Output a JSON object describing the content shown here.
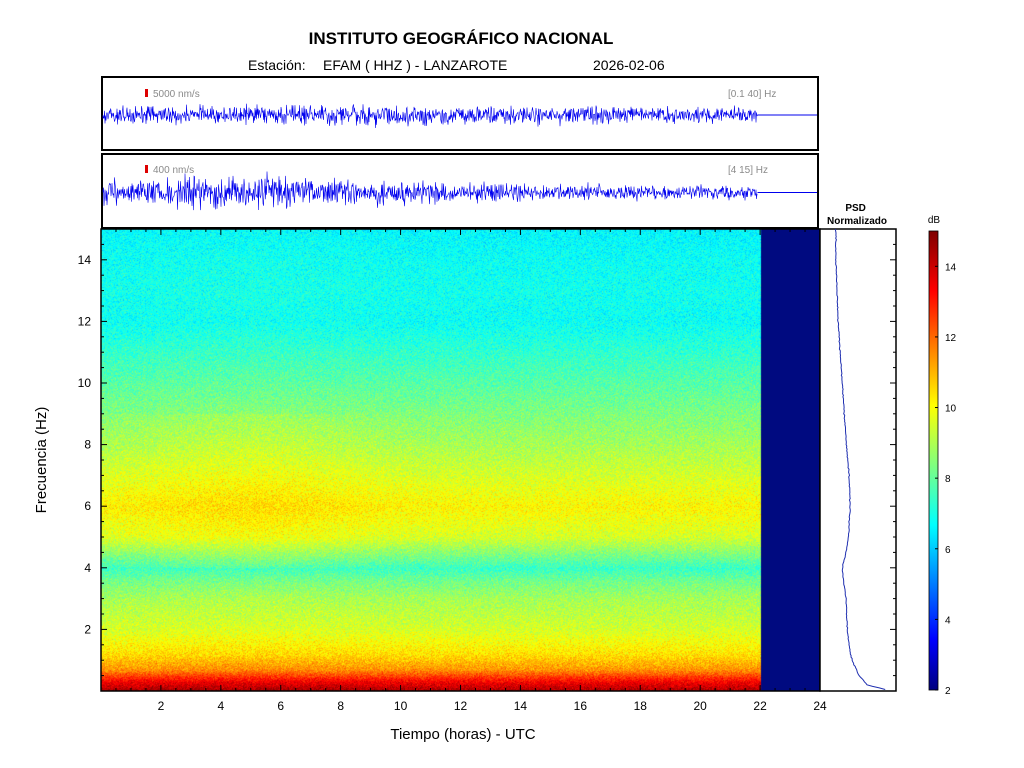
{
  "header": {
    "title": "INSTITUTO GEOGRÁFICO NACIONAL",
    "station_prefix": "Estación:",
    "station": "EFAM ( HHZ ) - LANZAROTE",
    "date": "2026-02-06"
  },
  "colors": {
    "trace": "#0000ee",
    "scale_marker": "#dd0000",
    "no_data": "#000a80",
    "psd_line": "#1f2fb0",
    "annotation": "#8a8a8a"
  },
  "chart_data": [
    {
      "type": "line",
      "name": "seismogram-broadband",
      "scale_label": "5000 nm/s",
      "band_label": "[0.1 40] Hz",
      "x_range": [
        0,
        24
      ],
      "data_until_hour": 22,
      "amplitude_envelope": [
        {
          "x": 0,
          "amp": 0.35
        },
        {
          "x": 6,
          "amp": 0.36
        },
        {
          "x": 9.5,
          "amp": 0.42
        },
        {
          "x": 14,
          "amp": 0.37
        },
        {
          "x": 22,
          "amp": 0.33
        }
      ]
    },
    {
      "type": "line",
      "name": "seismogram-filtered",
      "scale_label": "400 nm/s",
      "band_label": "[4 15] Hz",
      "x_range": [
        0,
        24
      ],
      "data_until_hour": 22,
      "amplitude_envelope": [
        {
          "x": 0,
          "amp": 0.45
        },
        {
          "x": 3,
          "amp": 0.6
        },
        {
          "x": 5.5,
          "amp": 0.65
        },
        {
          "x": 9,
          "amp": 0.45
        },
        {
          "x": 14,
          "amp": 0.35
        },
        {
          "x": 22,
          "amp": 0.25
        }
      ]
    },
    {
      "type": "heatmap",
      "name": "spectrogram",
      "xlabel": "Tiempo (horas) - UTC",
      "ylabel": "Frecuencia  (Hz)",
      "x_range": [
        0,
        24
      ],
      "y_range": [
        0,
        15
      ],
      "x_ticks": [
        2,
        4,
        6,
        8,
        10,
        12,
        14,
        16,
        18,
        20,
        22,
        24
      ],
      "y_ticks": [
        2,
        4,
        6,
        8,
        10,
        12,
        14
      ],
      "data_until_hour": 22,
      "color_range_db": [
        2,
        15
      ],
      "db_profile_by_frequency": [
        {
          "freq": 0.0,
          "db": 14.5
        },
        {
          "freq": 0.3,
          "db": 13.5
        },
        {
          "freq": 0.7,
          "db": 11.5
        },
        {
          "freq": 1.2,
          "db": 10.5
        },
        {
          "freq": 2.0,
          "db": 9.6
        },
        {
          "freq": 3.0,
          "db": 9.0
        },
        {
          "freq": 3.6,
          "db": 8.3
        },
        {
          "freq": 4.0,
          "db": 7.6
        },
        {
          "freq": 4.4,
          "db": 8.4
        },
        {
          "freq": 5.0,
          "db": 9.6
        },
        {
          "freq": 6.0,
          "db": 10.2
        },
        {
          "freq": 7.0,
          "db": 9.6
        },
        {
          "freq": 8.0,
          "db": 9.0
        },
        {
          "freq": 9.0,
          "db": 8.5
        },
        {
          "freq": 10.0,
          "db": 8.0
        },
        {
          "freq": 11.0,
          "db": 7.5
        },
        {
          "freq": 12.0,
          "db": 7.0
        },
        {
          "freq": 13.0,
          "db": 7.1
        },
        {
          "freq": 14.0,
          "db": 7.0
        },
        {
          "freq": 15.0,
          "db": 6.8
        }
      ]
    },
    {
      "type": "line",
      "name": "psd-normalizado",
      "title": "PSD\nNormalizado",
      "y_range": [
        0,
        15
      ],
      "x_range": [
        0,
        1
      ],
      "values": [
        {
          "freq": 0.0,
          "v": 0.95
        },
        {
          "freq": 0.2,
          "v": 0.55
        },
        {
          "freq": 0.5,
          "v": 0.42
        },
        {
          "freq": 1.0,
          "v": 0.3
        },
        {
          "freq": 1.5,
          "v": 0.25
        },
        {
          "freq": 2.0,
          "v": 0.22
        },
        {
          "freq": 3.0,
          "v": 0.2
        },
        {
          "freq": 3.6,
          "v": 0.16
        },
        {
          "freq": 4.0,
          "v": 0.14
        },
        {
          "freq": 4.5,
          "v": 0.2
        },
        {
          "freq": 5.0,
          "v": 0.24
        },
        {
          "freq": 6.0,
          "v": 0.27
        },
        {
          "freq": 7.0,
          "v": 0.25
        },
        {
          "freq": 8.0,
          "v": 0.21
        },
        {
          "freq": 9.0,
          "v": 0.17
        },
        {
          "freq": 10.0,
          "v": 0.14
        },
        {
          "freq": 11.0,
          "v": 0.1
        },
        {
          "freq": 12.0,
          "v": 0.07
        },
        {
          "freq": 13.0,
          "v": 0.05
        },
        {
          "freq": 14.0,
          "v": 0.03
        },
        {
          "freq": 15.0,
          "v": 0.03
        }
      ]
    },
    {
      "type": "colorbar",
      "name": "colorbar",
      "title": "dB",
      "range": [
        2,
        15
      ],
      "ticks": [
        2,
        4,
        6,
        8,
        10,
        12,
        14
      ]
    }
  ]
}
